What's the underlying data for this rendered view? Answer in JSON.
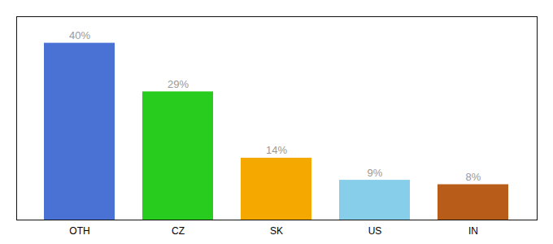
{
  "chart_data": {
    "type": "bar",
    "categories": [
      "OTH",
      "CZ",
      "SK",
      "US",
      "IN"
    ],
    "values": [
      40,
      29,
      14,
      9,
      8
    ],
    "value_labels": [
      "40%",
      "29%",
      "14%",
      "9%",
      "8%"
    ],
    "data_labels": true,
    "colors": [
      "#4a72d4",
      "#28cc1e",
      "#f5a800",
      "#87ceeb",
      "#b85c1a"
    ],
    "ylim": [
      0,
      46
    ],
    "yticks": [],
    "tick_labels": "x",
    "grid": false
  }
}
